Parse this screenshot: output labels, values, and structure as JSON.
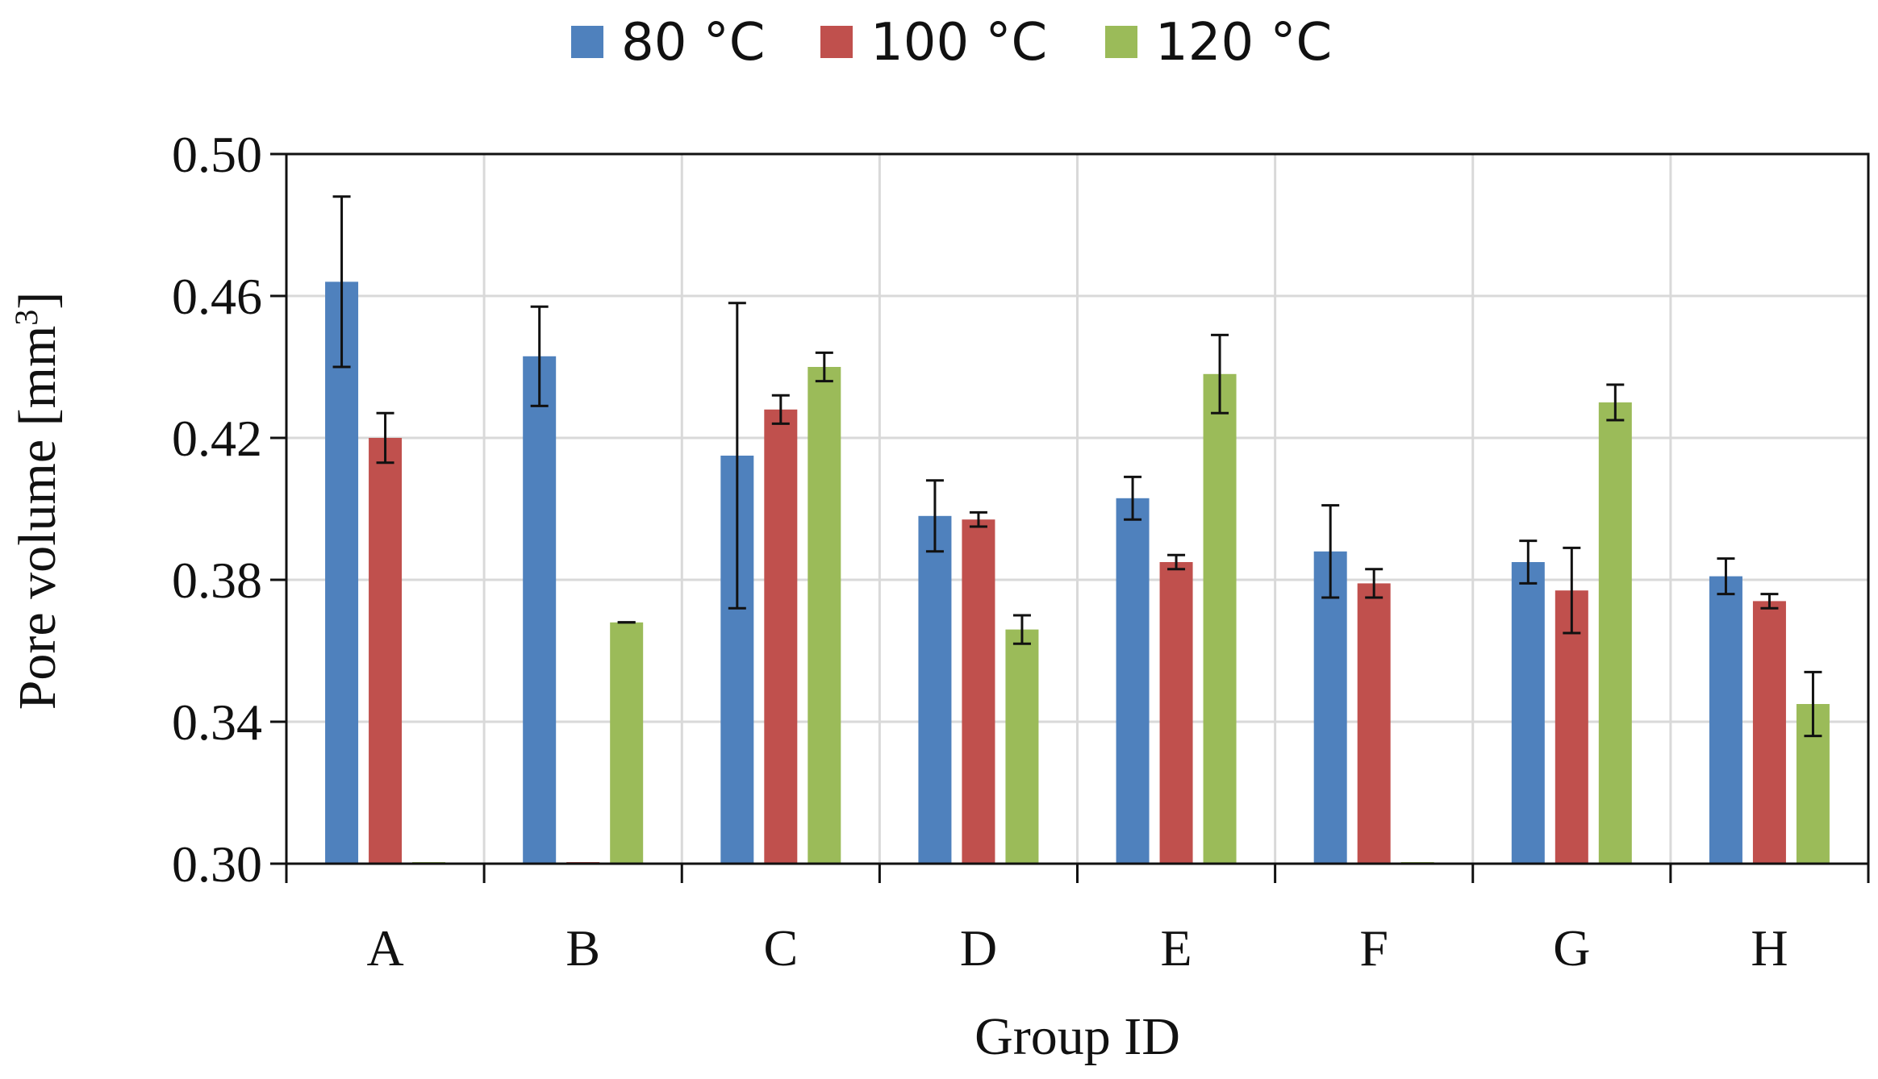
{
  "chart_data": {
    "type": "bar",
    "title": "",
    "xlabel": "Group ID",
    "ylabel": "Pore volume [mm",
    "ylabel_superscript": "3",
    "ylabel_suffix": "]",
    "ylim": [
      0.3,
      0.5
    ],
    "yticks": [
      "0.30",
      "0.34",
      "0.38",
      "0.42",
      "0.46",
      "0.50"
    ],
    "ytick_values": [
      0.3,
      0.34,
      0.38,
      0.42,
      0.46,
      0.5
    ],
    "grid": true,
    "legend_position": "top-center",
    "categories": [
      "A",
      "B",
      "C",
      "D",
      "E",
      "F",
      "G",
      "H"
    ],
    "series": [
      {
        "name": "80 °C",
        "color": "#4F81BD",
        "values": [
          0.464,
          0.443,
          0.415,
          0.398,
          0.403,
          0.388,
          0.385,
          0.381
        ],
        "errors": [
          0.024,
          0.014,
          0.043,
          0.01,
          0.006,
          0.013,
          0.006,
          0.005
        ]
      },
      {
        "name": "100 °C",
        "color": "#C0504D",
        "values": [
          0.42,
          0.3,
          0.428,
          0.397,
          0.385,
          0.379,
          0.377,
          0.374
        ],
        "errors": [
          0.007,
          0.0,
          0.004,
          0.002,
          0.002,
          0.004,
          0.012,
          0.002
        ]
      },
      {
        "name": "120 °C",
        "color": "#9BBB59",
        "values": [
          0.3,
          0.368,
          0.44,
          0.366,
          0.438,
          0.3,
          0.43,
          0.345
        ],
        "errors": [
          0.0,
          0.0,
          0.004,
          0.004,
          0.011,
          0.0,
          0.005,
          0.009
        ]
      }
    ]
  }
}
